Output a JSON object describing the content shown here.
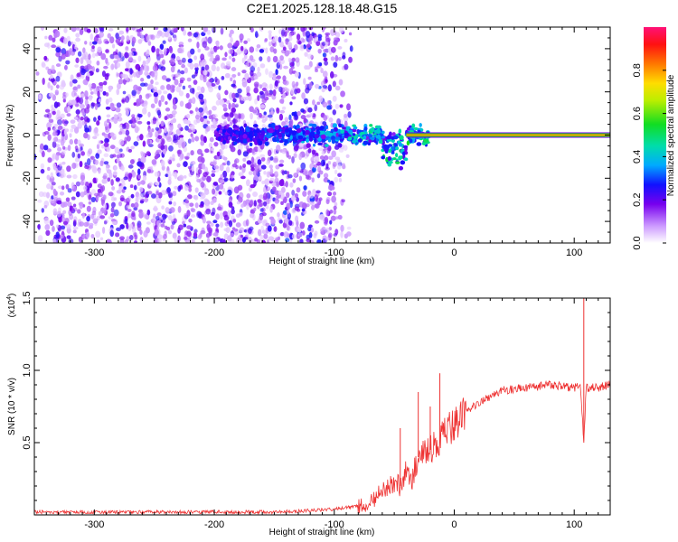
{
  "title": "C2E1.2025.128.18.48.G15",
  "chart_data": [
    {
      "type": "heatmap",
      "panel": "top",
      "xlabel": "Height of straight line (km)",
      "ylabel": "Frequency (Hz)",
      "xlim": [
        -350,
        130
      ],
      "ylim": [
        -50,
        50
      ],
      "xticks": [
        -300,
        -200,
        -100,
        0,
        100
      ],
      "yticks": [
        -40,
        -20,
        0,
        20,
        40
      ],
      "colorbar": {
        "label": "Normalized spectral amplitude",
        "range": [
          0.0,
          1.0
        ],
        "ticks": [
          "0.0",
          "0.2",
          "0.4",
          "0.6",
          "0.8"
        ]
      },
      "features": {
        "broadband_noise_x_range": [
          -350,
          -100
        ],
        "carrier_line_x_range": [
          -40,
          130
        ],
        "carrier_frequency": 0,
        "carrier_amplitude": 0.8
      }
    },
    {
      "type": "line",
      "panel": "bottom",
      "xlabel": "Height of straight line (km)",
      "ylabel": "SNR (10 * v/v)",
      "yscale_note": "(x10",
      "yscale_exp": "4",
      "xlim": [
        -350,
        130
      ],
      "ylim": [
        0,
        1.5
      ],
      "xticks": [
        -300,
        -200,
        -100,
        0,
        100
      ],
      "yticks": [
        "0.5",
        "1.0",
        "1.5"
      ],
      "color": "#ee3333",
      "series": [
        {
          "x": [
            -350,
            -300,
            -250,
            -200,
            -150,
            -120,
            -100,
            -80,
            -70,
            -60,
            -50,
            -45,
            -40,
            -35,
            -30,
            -20,
            -10,
            0,
            10,
            20,
            40,
            60,
            80,
            100,
            105,
            108,
            110,
            120,
            130
          ],
          "y": [
            0.02,
            0.02,
            0.02,
            0.02,
            0.02,
            0.03,
            0.04,
            0.06,
            0.09,
            0.16,
            0.22,
            0.2,
            0.3,
            0.25,
            0.4,
            0.45,
            0.55,
            0.62,
            0.7,
            0.78,
            0.86,
            0.88,
            0.9,
            0.88,
            0.9,
            0.5,
            0.88,
            0.88,
            0.9
          ]
        }
      ],
      "spikes": [
        {
          "x": -45,
          "y": 0.6
        },
        {
          "x": -30,
          "y": 0.85
        },
        {
          "x": -20,
          "y": 0.75
        },
        {
          "x": -12,
          "y": 0.98
        },
        {
          "x": 108,
          "y": 1.5
        }
      ]
    }
  ]
}
